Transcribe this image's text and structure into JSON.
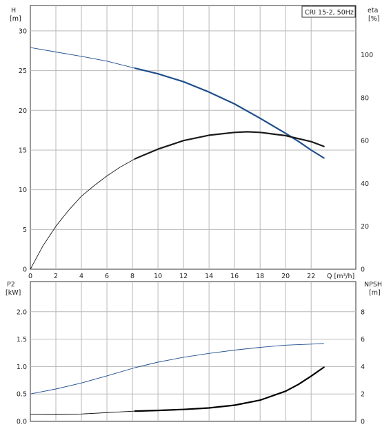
{
  "chart_data": [
    {
      "type": "line",
      "panel": "head-efficiency",
      "legend": "CRI 15-2, 50Hz",
      "x_label": "Q [m³/h]",
      "left_axis": {
        "label_line1": "H",
        "label_line2": "[m]",
        "ticks": [
          0,
          5,
          10,
          15,
          20,
          25,
          30
        ],
        "ylim": [
          0,
          33.2
        ]
      },
      "right_axis": {
        "label_line1": "eta",
        "label_line2": "[%]",
        "ticks": [
          0,
          20,
          40,
          60,
          80,
          100
        ],
        "ylim": [
          0,
          123
        ]
      },
      "x_ticks": [
        0,
        2,
        4,
        6,
        8,
        10,
        12,
        14,
        16,
        18,
        20,
        22
      ],
      "xlim": [
        0,
        25.5
      ],
      "grid": true,
      "series": [
        {
          "axis": "left",
          "color": "#1f4e8c",
          "thin_segment": [
            [
              0,
              27.9
            ],
            [
              2,
              27.35
            ],
            [
              4,
              26.8
            ],
            [
              6,
              26.2
            ],
            [
              8.2,
              25.3
            ]
          ],
          "thick_segment": [
            [
              8.2,
              25.3
            ],
            [
              10,
              24.6
            ],
            [
              12,
              23.6
            ],
            [
              14,
              22.3
            ],
            [
              16,
              20.8
            ],
            [
              18,
              19.0
            ],
            [
              20,
              17.1
            ],
            [
              21,
              16.1
            ],
            [
              22,
              15.0
            ],
            [
              23,
              14.0
            ]
          ]
        },
        {
          "axis": "right",
          "color": "#1a1a1a",
          "thin_segment": [
            [
              0,
              0
            ],
            [
              1,
              11
            ],
            [
              2,
              20
            ],
            [
              3,
              27.5
            ],
            [
              4,
              34
            ],
            [
              5,
              39
            ],
            [
              6,
              43.5
            ],
            [
              7,
              47.5
            ],
            [
              8.2,
              51.5
            ]
          ],
          "thick_segment": [
            [
              8.2,
              51.5
            ],
            [
              9,
              53.5
            ],
            [
              10,
              56
            ],
            [
              12,
              60
            ],
            [
              14,
              62.5
            ],
            [
              16,
              63.8
            ],
            [
              17,
              64.1
            ],
            [
              18,
              63.8
            ],
            [
              20,
              62.3
            ],
            [
              22,
              59.5
            ],
            [
              23,
              57.3
            ]
          ]
        }
      ]
    },
    {
      "type": "line",
      "panel": "power-npsh",
      "left_axis": {
        "label_line1": "P2",
        "label_line2": "[kW]",
        "ticks": [
          0.0,
          0.5,
          1.0,
          1.5,
          2.0
        ],
        "tick_labels": [
          "0.0",
          "0.5",
          "1.0",
          "1.5",
          "2.0"
        ],
        "ylim": [
          0,
          2.55
        ]
      },
      "right_axis": {
        "label_line1": "NPSH",
        "label_line2": "[m]",
        "ticks": [
          0,
          2,
          4,
          6,
          8
        ],
        "ylim": [
          0,
          10.2
        ]
      },
      "xlim": [
        0,
        25.5
      ],
      "grid": true,
      "series": [
        {
          "axis": "left",
          "color": "#1f4e8c",
          "thin_segment": [
            [
              0,
              0.5
            ],
            [
              2,
              0.59
            ],
            [
              4,
              0.7
            ],
            [
              6,
              0.83
            ],
            [
              8.2,
              0.98
            ]
          ],
          "thick_segment": []
        },
        {
          "axis": "left",
          "color": "#1f4e8c",
          "thin_segment": [
            [
              8.2,
              0.98
            ],
            [
              10,
              1.08
            ],
            [
              12,
              1.17
            ],
            [
              14,
              1.24
            ],
            [
              16,
              1.3
            ],
            [
              18,
              1.35
            ],
            [
              20,
              1.39
            ],
            [
              22,
              1.41
            ],
            [
              23,
              1.42
            ]
          ],
          "thick_segment": []
        },
        {
          "axis": "right",
          "color": "#000000",
          "thin_segment": [
            [
              0,
              0.52
            ],
            [
              2,
              0.5
            ],
            [
              4,
              0.54
            ],
            [
              6,
              0.64
            ],
            [
              8.2,
              0.75
            ]
          ],
          "thick_segment": [
            [
              8.2,
              0.75
            ],
            [
              10,
              0.8
            ],
            [
              12,
              0.87
            ],
            [
              14,
              0.98
            ],
            [
              16,
              1.18
            ],
            [
              18,
              1.55
            ],
            [
              20,
              2.2
            ],
            [
              21,
              2.7
            ],
            [
              22,
              3.3
            ],
            [
              23,
              3.95
            ]
          ]
        }
      ]
    }
  ]
}
